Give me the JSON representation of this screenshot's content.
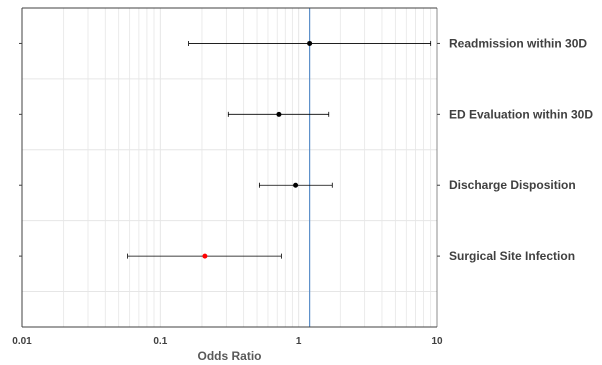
{
  "chart_data": {
    "type": "scatter",
    "subtype": "forest-plot",
    "xlabel": "Odds Ratio",
    "xscale": "log",
    "xlim": [
      0.01,
      10
    ],
    "xticks": [
      "0.01",
      "0.1",
      "1",
      "10"
    ],
    "reference_line": 1.2,
    "grid": true,
    "categories": [
      "Readmission within 30D",
      "ED Evaluation within 30D",
      "Discharge Disposition",
      "Surgical Site Infection"
    ],
    "series": [
      {
        "points": [
          {
            "category": "Readmission within 30D",
            "or": 1.2,
            "lower": 0.16,
            "upper": 9.0,
            "color": "#000000"
          },
          {
            "category": "ED Evaluation within 30D",
            "or": 0.72,
            "lower": 0.31,
            "upper": 1.65,
            "color": "#000000"
          },
          {
            "category": "Discharge Disposition",
            "or": 0.95,
            "lower": 0.52,
            "upper": 1.75,
            "color": "#000000"
          },
          {
            "category": "Surgical Site Infection",
            "or": 0.21,
            "lower": 0.058,
            "upper": 0.75,
            "color": "#ff0000"
          }
        ]
      }
    ],
    "colors": {
      "reference_line": "#5b8fc9",
      "grid": "#e6e6e6",
      "axis": "#404040"
    }
  }
}
